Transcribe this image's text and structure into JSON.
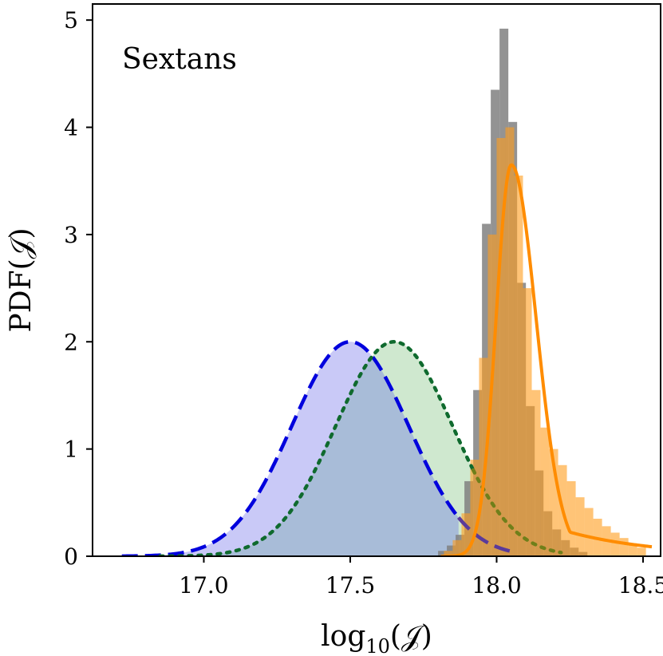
{
  "chart_data": {
    "type": "histogram-density",
    "annotation": "Sextans",
    "xlabel": {
      "base": "log",
      "sub": "10",
      "arg": "(𝒥)"
    },
    "ylabel": "PDF(𝒥)",
    "xlim": [
      16.62,
      18.56
    ],
    "ylim": [
      0,
      5.15
    ],
    "xticks": [
      17.0,
      17.5,
      18.0,
      18.5
    ],
    "xtick_labels": [
      "17.0",
      "17.5",
      "18.0",
      "18.5"
    ],
    "yticks": [
      0,
      1,
      2,
      3,
      4,
      5
    ],
    "ytick_labels": [
      "0",
      "1",
      "2",
      "3",
      "4",
      "5"
    ],
    "histograms": [
      {
        "name": "gray-histogram",
        "color": "#808080",
        "opacity": 0.85,
        "bin_edges": [
          17.8,
          17.83,
          17.86,
          17.89,
          17.92,
          17.95,
          17.98,
          18.01,
          18.04,
          18.07,
          18.1,
          18.13,
          18.16,
          18.19,
          18.22,
          18.25,
          18.28,
          18.31
        ],
        "values": [
          0.05,
          0.1,
          0.2,
          0.7,
          1.55,
          3.1,
          4.35,
          4.92,
          4.05,
          2.55,
          1.4,
          0.8,
          0.42,
          0.25,
          0.15,
          0.08,
          0.04
        ]
      },
      {
        "name": "orange-histogram",
        "color": "#ff9d1c",
        "opacity": 0.6,
        "bin_edges": [
          17.82,
          17.85,
          17.88,
          17.91,
          17.94,
          17.97,
          18.0,
          18.03,
          18.06,
          18.09,
          18.12,
          18.15,
          18.18,
          18.21,
          18.24,
          18.27,
          18.3,
          18.33,
          18.36,
          18.39,
          18.42,
          18.45,
          18.48,
          18.51
        ],
        "values": [
          0.05,
          0.15,
          0.4,
          0.9,
          1.85,
          3.0,
          3.9,
          4.0,
          3.55,
          2.5,
          1.55,
          1.2,
          1.0,
          0.85,
          0.7,
          0.55,
          0.45,
          0.35,
          0.28,
          0.22,
          0.17,
          0.12,
          0.08
        ]
      }
    ],
    "series": [
      {
        "name": "blue-dashed-gaussian",
        "kind": "gaussian",
        "mean": 17.5,
        "sigma": 0.2,
        "peak": 2.0,
        "x_range": [
          16.72,
          17.87
        ],
        "color": "#0000dd",
        "fill": "#c9c9f7",
        "style": "dashed"
      },
      {
        "name": "blue-dashed-tail",
        "kind": "gaussian",
        "mean": 17.5,
        "sigma": 0.2,
        "peak": 2.0,
        "x_range": [
          17.87,
          18.05
        ],
        "color": "#5a3a9a",
        "style": "dashed"
      },
      {
        "name": "green-dotted-gaussian",
        "kind": "gaussian",
        "mean": 17.65,
        "sigma": 0.2,
        "peak": 2.0,
        "x_range": [
          16.85,
          17.92
        ],
        "color": "#0f6a2e",
        "fill": "#cfe8cf",
        "style": "dotted"
      },
      {
        "name": "green-dotted-tail",
        "kind": "gaussian",
        "mean": 17.65,
        "sigma": 0.2,
        "peak": 2.0,
        "x_range": [
          17.92,
          18.22
        ],
        "color": "#6f7f1a",
        "style": "dotted"
      },
      {
        "name": "orange-solid-density",
        "kind": "skewed",
        "mean": 18.05,
        "sigma_left": 0.052,
        "sigma_right": 0.085,
        "tail_weight": 0.12,
        "tail_sigma": 0.3,
        "peak": 3.65,
        "x_range": [
          17.81,
          18.53
        ],
        "color": "#ff8c00",
        "style": "solid"
      }
    ],
    "overlap_fill": "#a8bcd8"
  }
}
